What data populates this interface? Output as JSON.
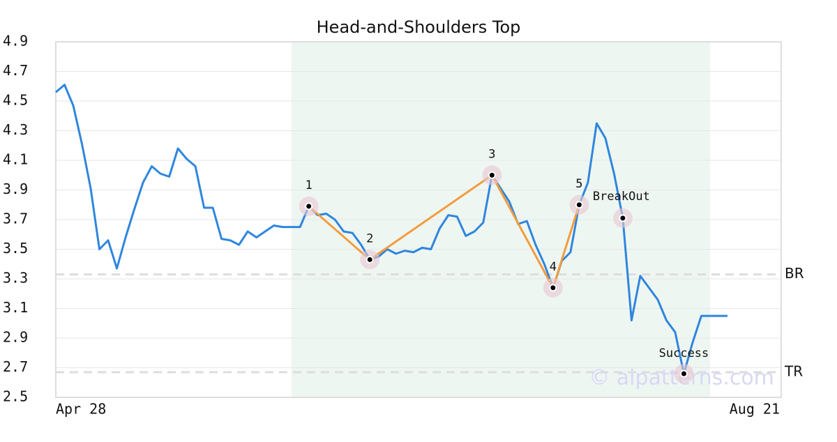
{
  "chart_data": {
    "type": "line",
    "title": "Head-and-Shoulders Top",
    "categories": [
      "Apr 28",
      null,
      null,
      null,
      null,
      null,
      null,
      null,
      null,
      null,
      null,
      null,
      null,
      null,
      null,
      null,
      null,
      null,
      null,
      null,
      null,
      null,
      null,
      null,
      null,
      null,
      null,
      null,
      null,
      null,
      null,
      null,
      null,
      null,
      null,
      null,
      null,
      null,
      null,
      null,
      null,
      null,
      null,
      null,
      null,
      null,
      null,
      null,
      null,
      null,
      null,
      null,
      null,
      null,
      null,
      null,
      null,
      null,
      null,
      null,
      null,
      null,
      null,
      null,
      null,
      null,
      null,
      null,
      null,
      null,
      null,
      null,
      null,
      null,
      null,
      null,
      null,
      "Aug 21"
    ],
    "series": [
      {
        "color": "#2e86de",
        "values": [
          4.56,
          4.61,
          4.47,
          4.21,
          3.91,
          3.5,
          3.56,
          3.37,
          3.58,
          3.77,
          3.95,
          4.06,
          4.01,
          3.99,
          4.18,
          4.11,
          4.06,
          3.78,
          3.78,
          3.57,
          3.56,
          3.53,
          3.62,
          3.58,
          3.62,
          3.66,
          3.65,
          3.65,
          3.65,
          3.79,
          3.73,
          3.74,
          3.7,
          3.62,
          3.61,
          3.53,
          3.43,
          3.45,
          3.5,
          3.47,
          3.49,
          3.48,
          3.51,
          3.5,
          3.64,
          3.73,
          3.72,
          3.59,
          3.62,
          3.68,
          4.0,
          3.91,
          3.82,
          3.67,
          3.69,
          3.53,
          3.4,
          3.24,
          3.42,
          3.48,
          3.8,
          3.95,
          4.35,
          4.25,
          4.01,
          3.71,
          3.02,
          3.32,
          3.24,
          3.16,
          3.02,
          2.94,
          2.66,
          2.87,
          3.05,
          3.05,
          3.05,
          3.05
        ]
      }
    ],
    "ylim": [
      2.5,
      4.9
    ],
    "yticks": [
      2.5,
      2.7,
      2.9,
      3.1,
      3.3,
      3.5,
      3.7,
      3.9,
      4.1,
      4.3,
      4.5,
      4.7,
      4.9
    ],
    "grid": true,
    "pattern_region": [
      27,
      75
    ],
    "pattern_color": "#f39c3c",
    "pattern_points": [
      {
        "label": "1",
        "x": 29,
        "value": 3.79
      },
      {
        "label": "2",
        "x": 36,
        "value": 3.43
      },
      {
        "label": "3",
        "x": 50,
        "value": 4.0
      },
      {
        "label": "4",
        "x": 57,
        "value": 3.24
      },
      {
        "label": "5",
        "x": 60,
        "value": 3.8
      }
    ],
    "events": [
      {
        "label": "BreakOut",
        "x": 65,
        "value": 3.71
      },
      {
        "label": "Success",
        "x": 72,
        "value": 2.66
      }
    ],
    "levels": [
      {
        "label": "BR",
        "value": 3.33
      },
      {
        "label": "TR",
        "value": 2.67
      }
    ],
    "watermark": "© aipatterns.com"
  }
}
